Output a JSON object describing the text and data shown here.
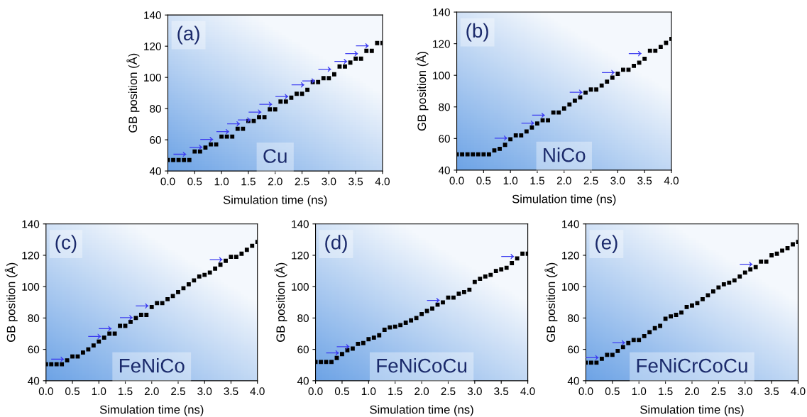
{
  "chart_data": [
    {
      "type": "scatter",
      "xlabel": "Simulation time (ns)",
      "ylabel": "GB position (Å)",
      "marker": "square",
      "color": "#000000",
      "xlim": [
        0,
        4
      ],
      "ylim": [
        40,
        140
      ],
      "xticks": [
        {
          "value": 0,
          "label": "0.0"
        },
        {
          "value": 0.5,
          "label": "0.5"
        },
        {
          "value": 1,
          "label": "1.0"
        },
        {
          "value": 1.5,
          "label": "1.5"
        },
        {
          "value": 2,
          "label": "2.0"
        },
        {
          "value": 2.5,
          "label": "2.5"
        },
        {
          "value": 3,
          "label": "3.0"
        },
        {
          "value": 3.5,
          "label": "3.5"
        },
        {
          "value": 4,
          "label": "4.0"
        }
      ],
      "yticks": [
        40,
        60,
        80,
        100,
        120,
        140
      ],
      "x": [
        0.0,
        0.1,
        0.2,
        0.3,
        0.4,
        0.5,
        0.6,
        0.7,
        0.8,
        0.9,
        1.0,
        1.1,
        1.2,
        1.3,
        1.4,
        1.5,
        1.6,
        1.7,
        1.8,
        1.9,
        2.0,
        2.1,
        2.2,
        2.3,
        2.4,
        2.5,
        2.6,
        2.7,
        2.8,
        2.9,
        3.0,
        3.1,
        3.2,
        3.3,
        3.4,
        3.5,
        3.6,
        3.7,
        3.8,
        3.9,
        4.0
      ],
      "values": [
        47,
        47,
        47,
        47,
        47,
        52.5,
        52.5,
        55,
        57,
        57,
        62,
        62,
        62,
        67,
        67,
        72,
        72,
        74.5,
        74.5,
        79.5,
        79.5,
        84.5,
        84.5,
        87,
        89.5,
        89.5,
        92,
        97,
        97,
        99.5,
        99.5,
        102,
        107,
        107,
        109.5,
        112,
        112,
        117,
        117,
        122,
        122
      ],
      "annotations": [
        "(a)",
        "Cu",
        {
          "text": "→",
          "x": 0.5,
          "y": 52.5
        },
        {
          "text": "→",
          "x": 0.8,
          "y": 57
        },
        {
          "text": "→",
          "x": 1.0,
          "y": 62
        },
        {
          "text": "→",
          "x": 1.3,
          "y": 67
        },
        {
          "text": "→",
          "x": 1.5,
          "y": 72
        },
        {
          "text": "→",
          "x": 1.7,
          "y": 74.5
        },
        {
          "text": "→",
          "x": 1.9,
          "y": 79.5
        },
        {
          "text": "→",
          "x": 2.1,
          "y": 84.5
        },
        {
          "text": "→",
          "x": 2.4,
          "y": 89.5
        },
        {
          "text": "→",
          "x": 2.7,
          "y": 97
        },
        {
          "text": "→",
          "x": 2.9,
          "y": 99.5
        },
        {
          "text": "→",
          "x": 3.2,
          "y": 107
        },
        {
          "text": "→",
          "x": 3.5,
          "y": 112
        },
        {
          "text": "→",
          "x": 3.7,
          "y": 117
        },
        {
          "text": "→",
          "x": 3.9,
          "y": 122
        }
      ]
    },
    {
      "type": "scatter",
      "xlabel": "Simulation time (ns)",
      "ylabel": "GB position (Å)",
      "marker": "square",
      "color": "#000000",
      "xlim": [
        0,
        4
      ],
      "ylim": [
        40,
        140
      ],
      "xticks": [
        {
          "value": 0,
          "label": "0.0"
        },
        {
          "value": 0.5,
          "label": "0.5"
        },
        {
          "value": 1,
          "label": "1.0"
        },
        {
          "value": 1.5,
          "label": "1.5"
        },
        {
          "value": 2,
          "label": "2.0"
        },
        {
          "value": 2.5,
          "label": "2.5"
        },
        {
          "value": 3,
          "label": "3.0"
        },
        {
          "value": 3.5,
          "label": "3.5"
        },
        {
          "value": 4,
          "label": "4.0"
        }
      ],
      "yticks": [
        40,
        60,
        80,
        100,
        120,
        140
      ],
      "x": [
        0.0,
        0.1,
        0.2,
        0.3,
        0.4,
        0.5,
        0.6,
        0.7,
        0.8,
        0.9,
        1.0,
        1.1,
        1.2,
        1.3,
        1.4,
        1.5,
        1.6,
        1.7,
        1.8,
        1.9,
        2.0,
        2.1,
        2.2,
        2.3,
        2.4,
        2.5,
        2.6,
        2.7,
        2.8,
        2.9,
        3.0,
        3.1,
        3.2,
        3.3,
        3.4,
        3.5,
        3.6,
        3.7,
        3.8,
        3.9,
        4.0
      ],
      "values": [
        50,
        50,
        50,
        50,
        50,
        50,
        50,
        52.5,
        53.5,
        56,
        59.5,
        62,
        62,
        64.5,
        67,
        69.5,
        71.5,
        71.5,
        76.5,
        76.5,
        79,
        81.5,
        84,
        86,
        89,
        91,
        91,
        93.5,
        96,
        98.5,
        101,
        103.5,
        103.5,
        106,
        108,
        110.5,
        115.5,
        115.5,
        118,
        120.5,
        123
      ],
      "annotations": [
        "(b)",
        "NiCo",
        {
          "text": "→",
          "x": 1.1,
          "y": 62
        },
        {
          "text": "→",
          "x": 1.6,
          "y": 71.5
        },
        {
          "text": "→",
          "x": 1.8,
          "y": 76.5
        },
        {
          "text": "→",
          "x": 2.5,
          "y": 91
        },
        {
          "text": "→",
          "x": 3.1,
          "y": 103.5
        },
        {
          "text": "→",
          "x": 3.6,
          "y": 115.5
        }
      ]
    },
    {
      "type": "scatter",
      "xlabel": "Simulation time (ns)",
      "ylabel": "GB position (Å)",
      "marker": "square",
      "color": "#000000",
      "xlim": [
        0,
        4
      ],
      "ylim": [
        40,
        140
      ],
      "xticks": [
        {
          "value": 0,
          "label": "0.0"
        },
        {
          "value": 0.5,
          "label": "0.5"
        },
        {
          "value": 1,
          "label": "1.0"
        },
        {
          "value": 1.5,
          "label": "1.5"
        },
        {
          "value": 2,
          "label": "2.0"
        },
        {
          "value": 2.5,
          "label": "2.5"
        },
        {
          "value": 3,
          "label": "3.0"
        },
        {
          "value": 3.5,
          "label": "3.5"
        },
        {
          "value": 4,
          "label": "4.0"
        }
      ],
      "yticks": [
        40,
        60,
        80,
        100,
        120,
        140
      ],
      "x": [
        0.0,
        0.1,
        0.2,
        0.3,
        0.4,
        0.5,
        0.6,
        0.7,
        0.8,
        0.9,
        1.0,
        1.1,
        1.2,
        1.3,
        1.4,
        1.5,
        1.6,
        1.7,
        1.8,
        1.9,
        2.0,
        2.1,
        2.2,
        2.3,
        2.4,
        2.5,
        2.6,
        2.7,
        2.8,
        2.9,
        3.0,
        3.1,
        3.2,
        3.3,
        3.4,
        3.5,
        3.6,
        3.7,
        3.8,
        3.9,
        4.0
      ],
      "values": [
        50.5,
        50.5,
        50.5,
        50.5,
        53,
        55.5,
        55.5,
        58,
        60,
        62.5,
        65,
        67.5,
        70,
        70,
        75,
        75,
        77.5,
        80,
        82,
        82,
        87,
        89.5,
        89.5,
        92,
        94,
        96.5,
        99,
        101.5,
        104,
        106.5,
        107.5,
        109,
        111.5,
        114,
        116.5,
        119,
        119,
        121,
        123.5,
        126,
        128.5
      ],
      "annotations": [
        "(c)",
        "FeNiCo",
        {
          "text": "→",
          "x": 0.5,
          "y": 55.5
        },
        {
          "text": "→",
          "x": 1.2,
          "y": 70
        },
        {
          "text": "→",
          "x": 1.4,
          "y": 75
        },
        {
          "text": "→",
          "x": 1.8,
          "y": 82
        },
        {
          "text": "→",
          "x": 2.1,
          "y": 89.5
        },
        {
          "text": "→",
          "x": 3.5,
          "y": 119
        }
      ]
    },
    {
      "type": "scatter",
      "xlabel": "Simulation time (ns)",
      "ylabel": "GB position (Å)",
      "marker": "square",
      "color": "#000000",
      "xlim": [
        0,
        4
      ],
      "ylim": [
        40,
        140
      ],
      "xticks": [
        {
          "value": 0,
          "label": "0.0"
        },
        {
          "value": 0.5,
          "label": "0.5"
        },
        {
          "value": 1,
          "label": "1.0"
        },
        {
          "value": 1.5,
          "label": "1.5"
        },
        {
          "value": 2,
          "label": "2.0"
        },
        {
          "value": 2.5,
          "label": "2.5"
        },
        {
          "value": 3,
          "label": "3.0"
        },
        {
          "value": 3.5,
          "label": "3.5"
        },
        {
          "value": 4,
          "label": "4.0"
        }
      ],
      "yticks": [
        40,
        60,
        80,
        100,
        120,
        140
      ],
      "x": [
        0.0,
        0.1,
        0.2,
        0.3,
        0.4,
        0.5,
        0.6,
        0.7,
        0.8,
        0.9,
        1.0,
        1.1,
        1.2,
        1.3,
        1.4,
        1.5,
        1.6,
        1.7,
        1.8,
        1.9,
        2.0,
        2.1,
        2.2,
        2.3,
        2.4,
        2.5,
        2.6,
        2.7,
        2.8,
        2.9,
        3.0,
        3.1,
        3.2,
        3.3,
        3.4,
        3.5,
        3.6,
        3.7,
        3.8,
        3.9,
        4.0
      ],
      "values": [
        52,
        52,
        52,
        52,
        54.5,
        57,
        59.5,
        60.5,
        63.5,
        64,
        66.5,
        67.5,
        69,
        72.5,
        74,
        74.5,
        75.5,
        77,
        78.5,
        80,
        82.5,
        84.5,
        86,
        88.5,
        90,
        93,
        93,
        95.5,
        96.5,
        98,
        103,
        105,
        106.5,
        107.5,
        110,
        111,
        112,
        115,
        118,
        121,
        121
      ],
      "annotations": [
        "(d)",
        "FeNiCoCu",
        {
          "text": "→",
          "x": 0.6,
          "y": 59.5
        },
        {
          "text": "→",
          "x": 0.8,
          "y": 63.5
        },
        {
          "text": "→",
          "x": 2.5,
          "y": 93
        },
        {
          "text": "→",
          "x": 3.9,
          "y": 121
        }
      ]
    },
    {
      "type": "scatter",
      "xlabel": "Simulation time (ns)",
      "ylabel": "GB position (Å)",
      "marker": "square",
      "color": "#000000",
      "xlim": [
        0,
        4
      ],
      "ylim": [
        40,
        140
      ],
      "xticks": [
        {
          "value": 0,
          "label": "0.0"
        },
        {
          "value": 0.5,
          "label": "0.5"
        },
        {
          "value": 1,
          "label": "1.0"
        },
        {
          "value": 1.5,
          "label": "1.5"
        },
        {
          "value": 2,
          "label": "2.0"
        },
        {
          "value": 2.5,
          "label": "2.5"
        },
        {
          "value": 3,
          "label": "3.0"
        },
        {
          "value": 3.5,
          "label": "3.5"
        },
        {
          "value": 4,
          "label": "4.0"
        }
      ],
      "yticks": [
        40,
        60,
        80,
        100,
        120,
        140
      ],
      "x": [
        0.0,
        0.1,
        0.2,
        0.3,
        0.4,
        0.5,
        0.6,
        0.7,
        0.8,
        0.9,
        1.0,
        1.1,
        1.2,
        1.3,
        1.4,
        1.5,
        1.6,
        1.7,
        1.8,
        1.9,
        2.0,
        2.1,
        2.2,
        2.3,
        2.4,
        2.5,
        2.6,
        2.7,
        2.8,
        2.9,
        3.0,
        3.1,
        3.2,
        3.3,
        3.4,
        3.5,
        3.6,
        3.7,
        3.8,
        3.9,
        4.0
      ],
      "values": [
        51.5,
        51.5,
        51.5,
        54,
        56.5,
        56.5,
        59,
        61.5,
        64,
        66,
        66,
        68.5,
        71,
        73.5,
        75,
        79.5,
        81,
        82,
        83.5,
        87,
        88,
        89.5,
        92,
        94.5,
        97,
        99.5,
        101.5,
        102.5,
        104,
        106.5,
        109,
        111,
        112.5,
        116,
        116,
        120,
        121,
        123,
        124.5,
        127,
        128.5
      ],
      "annotations": [
        "(e)",
        "FeNiCrCoCu",
        {
          "text": "→",
          "x": 0.4,
          "y": 56.5
        },
        {
          "text": "→",
          "x": 0.9,
          "y": 66
        },
        {
          "text": "→",
          "x": 3.3,
          "y": 116
        }
      ]
    }
  ]
}
